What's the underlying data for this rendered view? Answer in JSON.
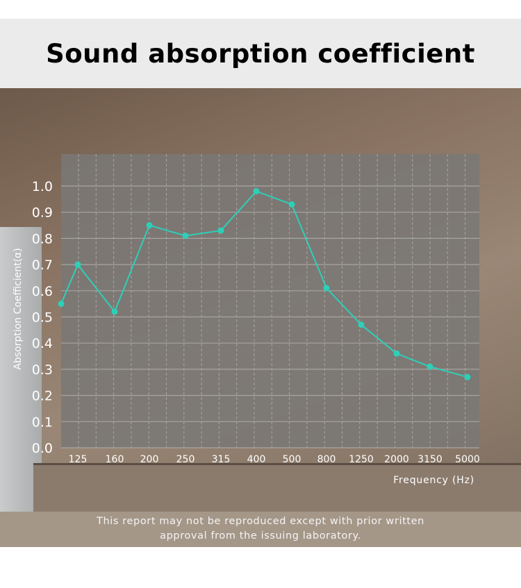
{
  "title": "Sound absorption coefficient",
  "footer": {
    "line1": "This report may not be reproduced except with prior written",
    "line2": "approval from the issuing laboratory."
  },
  "colors": {
    "series": "#2ecfb8",
    "plot_background": "#7a7875",
    "title_bar": "#ebebeb"
  },
  "chart_data": {
    "type": "line",
    "title": "Sound absorption coefficient",
    "xlabel": "Frequency (Hz)",
    "ylabel": "Absorption Coefficient(α)",
    "categories": [
      "",
      "125",
      "160",
      "200",
      "250",
      "315",
      "400",
      "500",
      "800",
      "1250",
      "2000",
      "3150",
      "5000"
    ],
    "values": [
      0.55,
      0.7,
      0.52,
      0.85,
      0.81,
      0.83,
      0.98,
      0.93,
      0.61,
      0.47,
      0.36,
      0.31,
      0.27
    ],
    "ylim": [
      0,
      1.0
    ],
    "yticks": [
      "0.0",
      "0.1",
      "0.2",
      "0.3",
      "0.4",
      "0.5",
      "0.6",
      "0.7",
      "0.8",
      "0.9",
      "1.0"
    ],
    "grid": true
  }
}
